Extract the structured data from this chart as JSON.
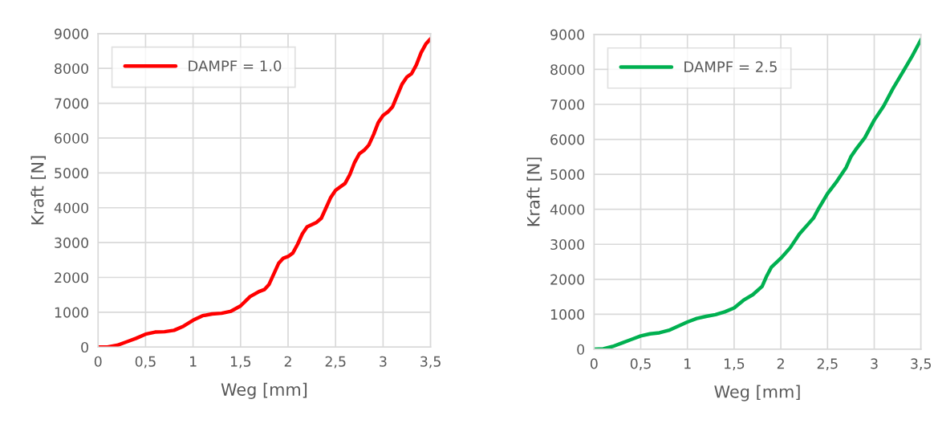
{
  "chart_data": [
    {
      "type": "line",
      "xlabel": "Weg [mm]",
      "ylabel": "Kraft [N]",
      "xlim": [
        0,
        3.5
      ],
      "ylim": [
        0,
        9000
      ],
      "xticks": [
        0,
        {
          "value": 0.5,
          "label": "0,5"
        },
        1,
        {
          "value": 1.5,
          "label": "1,5"
        },
        2,
        {
          "value": 2.5,
          "label": "2,5"
        },
        3,
        {
          "value": 3.5,
          "label": "3,5"
        }
      ],
      "yticks": [
        0,
        1000,
        2000,
        3000,
        4000,
        5000,
        6000,
        7000,
        8000,
        9000
      ],
      "grid": true,
      "legend": "top left",
      "marker": "none",
      "line_style": "solid",
      "series": [
        {
          "name": "DAMPF = 1.0",
          "color": "#ff0000",
          "x": [
            0,
            0.1,
            0.2,
            0.3,
            0.4,
            0.5,
            0.6,
            0.7,
            0.8,
            0.9,
            1.0,
            1.1,
            1.2,
            1.3,
            1.4,
            1.5,
            1.6,
            1.7,
            1.75,
            1.8,
            1.85,
            1.9,
            1.95,
            2.0,
            2.05,
            2.1,
            2.15,
            2.2,
            2.3,
            2.35,
            2.4,
            2.45,
            2.5,
            2.6,
            2.65,
            2.7,
            2.75,
            2.8,
            2.85,
            2.9,
            2.95,
            3.0,
            3.05,
            3.1,
            3.2,
            3.25,
            3.3,
            3.35,
            3.4,
            3.45,
            3.5
          ],
          "values": [
            0,
            0,
            50,
            150,
            250,
            370,
            430,
            440,
            480,
            600,
            770,
            900,
            950,
            970,
            1030,
            1180,
            1450,
            1600,
            1650,
            1800,
            2100,
            2400,
            2550,
            2600,
            2700,
            2950,
            3250,
            3450,
            3580,
            3700,
            4000,
            4300,
            4500,
            4700,
            4950,
            5300,
            5550,
            5650,
            5800,
            6100,
            6450,
            6650,
            6750,
            6900,
            7550,
            7750,
            7850,
            8100,
            8450,
            8700,
            8850
          ]
        }
      ]
    },
    {
      "type": "line",
      "xlabel": "Weg [mm]",
      "ylabel": "Kraft [N]",
      "xlim": [
        0,
        3.5
      ],
      "ylim": [
        0,
        9000
      ],
      "xticks": [
        0,
        {
          "value": 0.5,
          "label": "0,5"
        },
        1,
        {
          "value": 1.5,
          "label": "1,5"
        },
        2,
        {
          "value": 2.5,
          "label": "2,5"
        },
        3,
        {
          "value": 3.5,
          "label": "3,5"
        }
      ],
      "yticks": [
        0,
        1000,
        2000,
        3000,
        4000,
        5000,
        6000,
        7000,
        8000,
        9000
      ],
      "grid": true,
      "legend": "top left",
      "marker": "none",
      "line_style": "solid",
      "series": [
        {
          "name": "DAMPF = 2.5",
          "color": "#00b050",
          "x": [
            0,
            0.1,
            0.2,
            0.3,
            0.4,
            0.5,
            0.6,
            0.7,
            0.8,
            0.9,
            1.0,
            1.1,
            1.2,
            1.3,
            1.4,
            1.5,
            1.6,
            1.7,
            1.8,
            1.85,
            1.9,
            2.0,
            2.1,
            2.2,
            2.3,
            2.35,
            2.4,
            2.5,
            2.6,
            2.7,
            2.75,
            2.8,
            2.9,
            3.0,
            3.1,
            3.2,
            3.3,
            3.4,
            3.5
          ],
          "values": [
            0,
            10,
            80,
            180,
            280,
            380,
            440,
            470,
            540,
            660,
            780,
            880,
            940,
            990,
            1070,
            1180,
            1400,
            1560,
            1800,
            2100,
            2350,
            2600,
            2900,
            3300,
            3600,
            3750,
            4000,
            4450,
            4800,
            5200,
            5500,
            5700,
            6050,
            6550,
            6950,
            7450,
            7900,
            8350,
            8850
          ]
        }
      ]
    }
  ]
}
